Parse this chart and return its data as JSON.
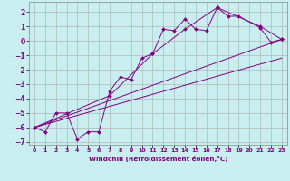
{
  "xlabel": "Windchill (Refroidissement éolien,°C)",
  "bg_color": "#c8eef0",
  "grid_color": "#aaaaaa",
  "line_color": "#800080",
  "xlim": [
    -0.5,
    23.5
  ],
  "ylim": [
    -7.2,
    2.7
  ],
  "xticks": [
    0,
    1,
    2,
    3,
    4,
    5,
    6,
    7,
    8,
    9,
    10,
    11,
    12,
    13,
    14,
    15,
    16,
    17,
    18,
    19,
    20,
    21,
    22,
    23
  ],
  "yticks": [
    -7,
    -6,
    -5,
    -4,
    -3,
    -2,
    -1,
    0,
    1,
    2
  ],
  "series1_x": [
    0,
    1,
    2,
    3,
    4,
    5,
    6,
    7,
    8,
    9,
    10,
    11,
    12,
    13,
    14,
    15,
    16,
    17,
    18,
    19,
    21,
    22,
    23
  ],
  "series1_y": [
    -6.0,
    -6.3,
    -5.0,
    -5.0,
    -6.8,
    -6.3,
    -6.3,
    -3.5,
    -2.5,
    -2.7,
    -1.2,
    -0.9,
    0.8,
    0.7,
    1.5,
    0.8,
    0.7,
    2.3,
    1.7,
    1.7,
    0.9,
    -0.1,
    0.1
  ],
  "series2_x": [
    0,
    7,
    11,
    14,
    17,
    21,
    23
  ],
  "series2_y": [
    -6.0,
    -3.8,
    -0.9,
    0.8,
    2.3,
    1.0,
    0.1
  ],
  "series3_x": [
    0,
    23
  ],
  "series3_y": [
    -6.0,
    0.1
  ],
  "series4_x": [
    0,
    23
  ],
  "series4_y": [
    -6.0,
    -1.2
  ]
}
